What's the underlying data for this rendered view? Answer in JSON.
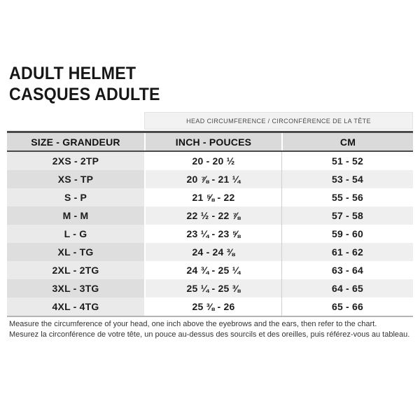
{
  "title": {
    "line1": "ADULT HELMET",
    "line2": "CASQUES ADULTE"
  },
  "table": {
    "span_header": "HEAD CIRCUMFERENCE / CIRCONFÉRENCE DE LA TÊTE",
    "columns": {
      "size": "SIZE - GRANDEUR",
      "inch": "INCH - POUCES",
      "cm": "CM"
    },
    "rows": [
      {
        "size": "2XS - 2TP",
        "inch": "20 - 20 ½",
        "cm": "51 - 52"
      },
      {
        "size": "XS - TP",
        "inch": "20 ⅞ - 21 ¼",
        "cm": "53 - 54"
      },
      {
        "size": "S - P",
        "inch": "21 ⅝ - 22",
        "cm": "55 - 56"
      },
      {
        "size": "M - M",
        "inch": "22 ½ - 22 ⅞",
        "cm": "57 - 58"
      },
      {
        "size": "L - G",
        "inch": "23 ¼ - 23 ⅝",
        "cm": "59 - 60"
      },
      {
        "size": "XL - TG",
        "inch": "24 - 24 ⅜",
        "cm": "61 - 62"
      },
      {
        "size": "2XL - 2TG",
        "inch": "24 ¾ - 25 ¼",
        "cm": "63 - 64"
      },
      {
        "size": "3XL - 3TG",
        "inch": "25 ¼ - 25 ⅜",
        "cm": "64 - 65"
      },
      {
        "size": "4XL - 4TG",
        "inch": "25 ⅜ - 26",
        "cm": "65 - 66"
      }
    ]
  },
  "footer": {
    "line1_en": "Measure the circumference of your head, one inch above the eyebrows and the ears, then refer to the chart.",
    "line2_fr": "Mesurez la circonférence de votre tête, un pouce au-dessus des sourcils et des oreilles, puis référez-vous au tableau."
  },
  "colors": {
    "header_bg": "#dadada",
    "row_alt_bg": "#efefef",
    "size_col_bg": "#eaeaea",
    "size_col_alt_bg": "#dedede",
    "border_dark": "#4a4a4a",
    "border_bottom": "#b5b5b5",
    "span_header_bg": "#f2f2f2",
    "text": "#161616"
  }
}
